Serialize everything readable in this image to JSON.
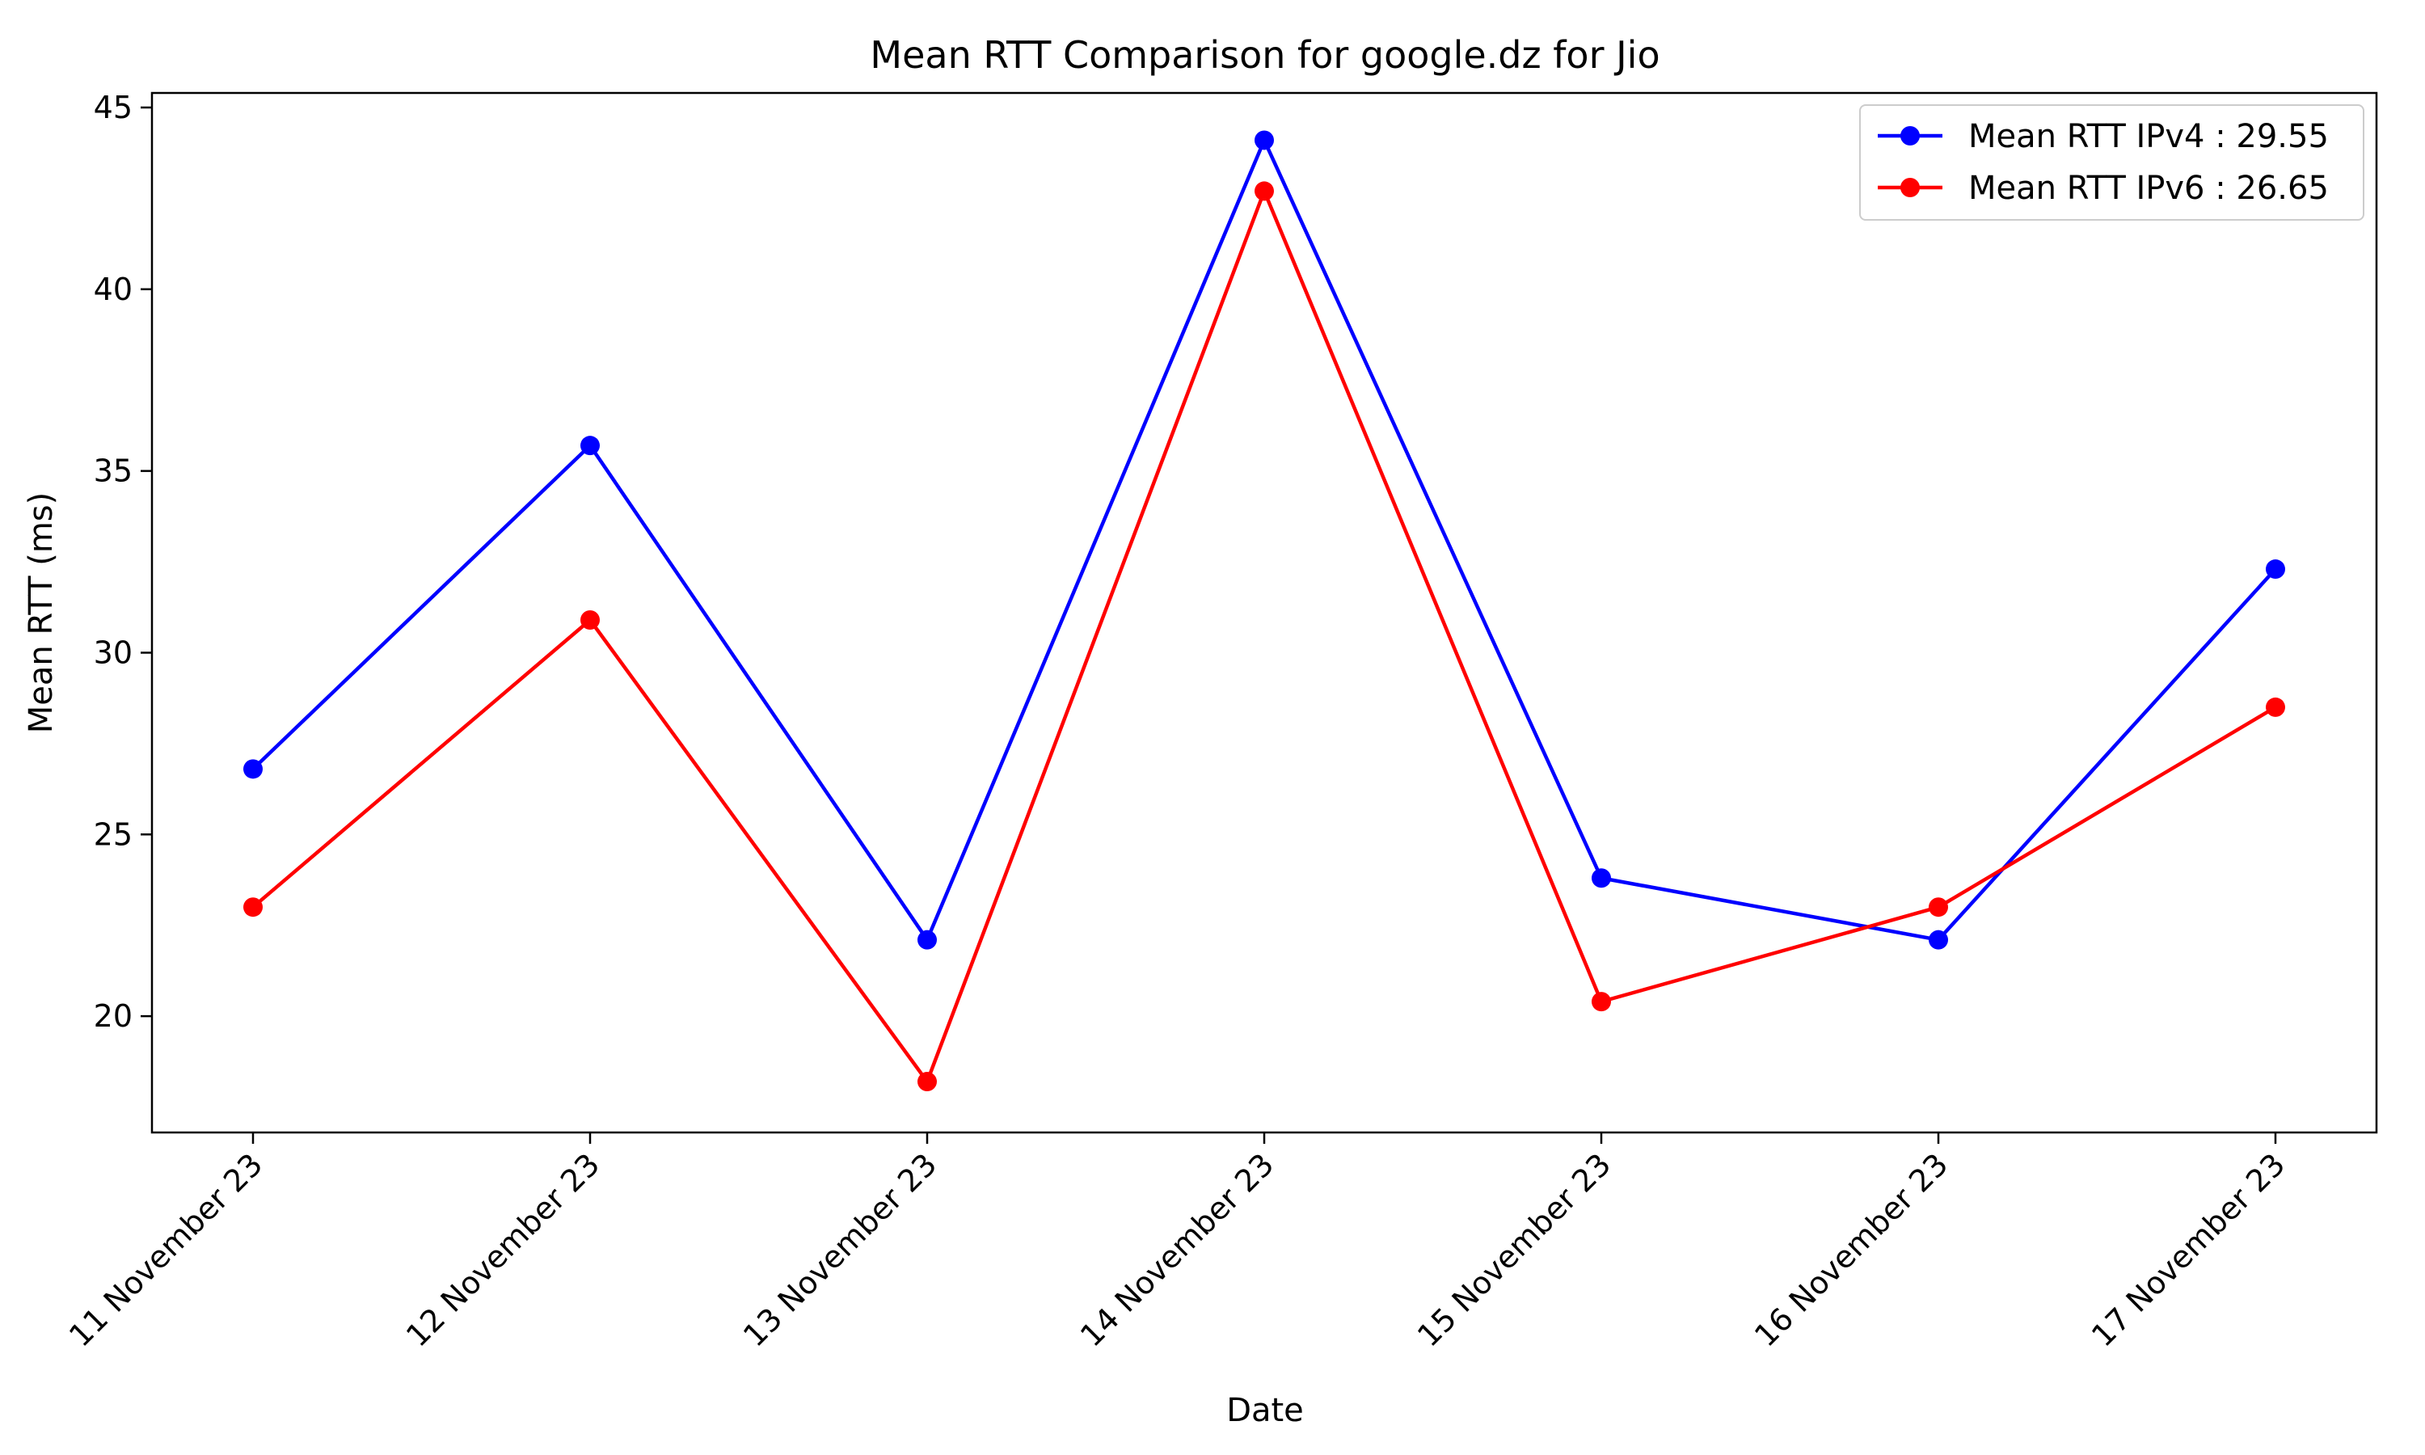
{
  "chart_data": {
    "type": "line",
    "title": "Mean RTT Comparison for google.dz for Jio",
    "xlabel": "Date",
    "ylabel": "Mean RTT (ms)",
    "categories": [
      "11 November 23",
      "12 November 23",
      "13 November 23",
      "14 November 23",
      "15 November 23",
      "16 November 23",
      "17 November 23"
    ],
    "ylim": [
      16.8,
      45.4
    ],
    "yticks": [
      20,
      25,
      30,
      35,
      40,
      45
    ],
    "grid": false,
    "legend_position": "top-right",
    "series": [
      {
        "name": "Mean RTT IPv4 : 29.55",
        "color": "#0000ff",
        "marker": "circle",
        "values": [
          26.8,
          35.7,
          22.1,
          44.1,
          23.8,
          22.1,
          32.3
        ]
      },
      {
        "name": "Mean RTT IPv6 : 26.65",
        "color": "#ff0000",
        "marker": "circle",
        "values": [
          23.0,
          30.9,
          18.2,
          42.7,
          20.4,
          23.0,
          28.5
        ]
      }
    ]
  }
}
